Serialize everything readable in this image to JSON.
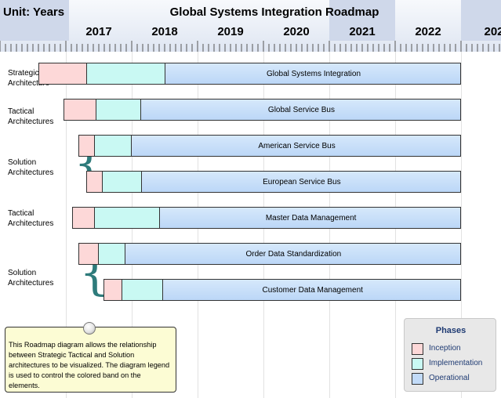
{
  "header": {
    "unit_label": "Unit: Years",
    "title": "Global Systems Integration Roadmap",
    "years": [
      "2017",
      "2018",
      "2019",
      "2020",
      "2021",
      "2022",
      "202"
    ]
  },
  "groups": [
    {
      "label": "Strategic\nArchitecture",
      "brace": false
    },
    {
      "label": "Tactical\nArchitectures",
      "brace": false
    },
    {
      "label": "Solution\nArchitectures",
      "brace": true
    },
    {
      "label": "Tactical\nArchitectures",
      "brace": false
    },
    {
      "label": "Solution\nArchitectures",
      "brace": true
    }
  ],
  "elements": [
    {
      "name": "Global Systems Integration",
      "inception_start": 2016.58,
      "implementation_start": 2017.31,
      "operational_start": 2018.5,
      "operational_end": 2023.0
    },
    {
      "name": "Global Service Bus",
      "inception_start": 2016.97,
      "implementation_start": 2017.45,
      "operational_start": 2018.13,
      "operational_end": 2023.0
    },
    {
      "name": "American Service Bus",
      "inception_start": 2017.19,
      "implementation_start": 2017.43,
      "operational_start": 2017.99,
      "operational_end": 2023.0
    },
    {
      "name": "European Service Bus",
      "inception_start": 2017.31,
      "implementation_start": 2017.55,
      "operational_start": 2018.14,
      "operational_end": 2023.0
    },
    {
      "name": "Master Data Management",
      "inception_start": 2017.1,
      "implementation_start": 2017.43,
      "operational_start": 2018.42,
      "operational_end": 2023.0
    },
    {
      "name": "Order Data Standardization",
      "inception_start": 2017.19,
      "implementation_start": 2017.49,
      "operational_start": 2017.89,
      "operational_end": 2023.0
    },
    {
      "name": "Customer Data Management",
      "inception_start": 2017.57,
      "implementation_start": 2017.84,
      "operational_start": 2018.47,
      "operational_end": 2023.0
    }
  ],
  "note": {
    "text": "This Roadmap diagram allows the relationship between Strategic Tactical and Solution architectures to be visualized. The diagram legend is used to control the colored band on the elements."
  },
  "legend": {
    "title": "Phases",
    "items": [
      {
        "label": "Inception",
        "color": "#fdd8d8"
      },
      {
        "label": "Implementation",
        "color": "#c9f9f3"
      },
      {
        "label": "Operational",
        "color": "#c2dbf8"
      }
    ]
  }
}
